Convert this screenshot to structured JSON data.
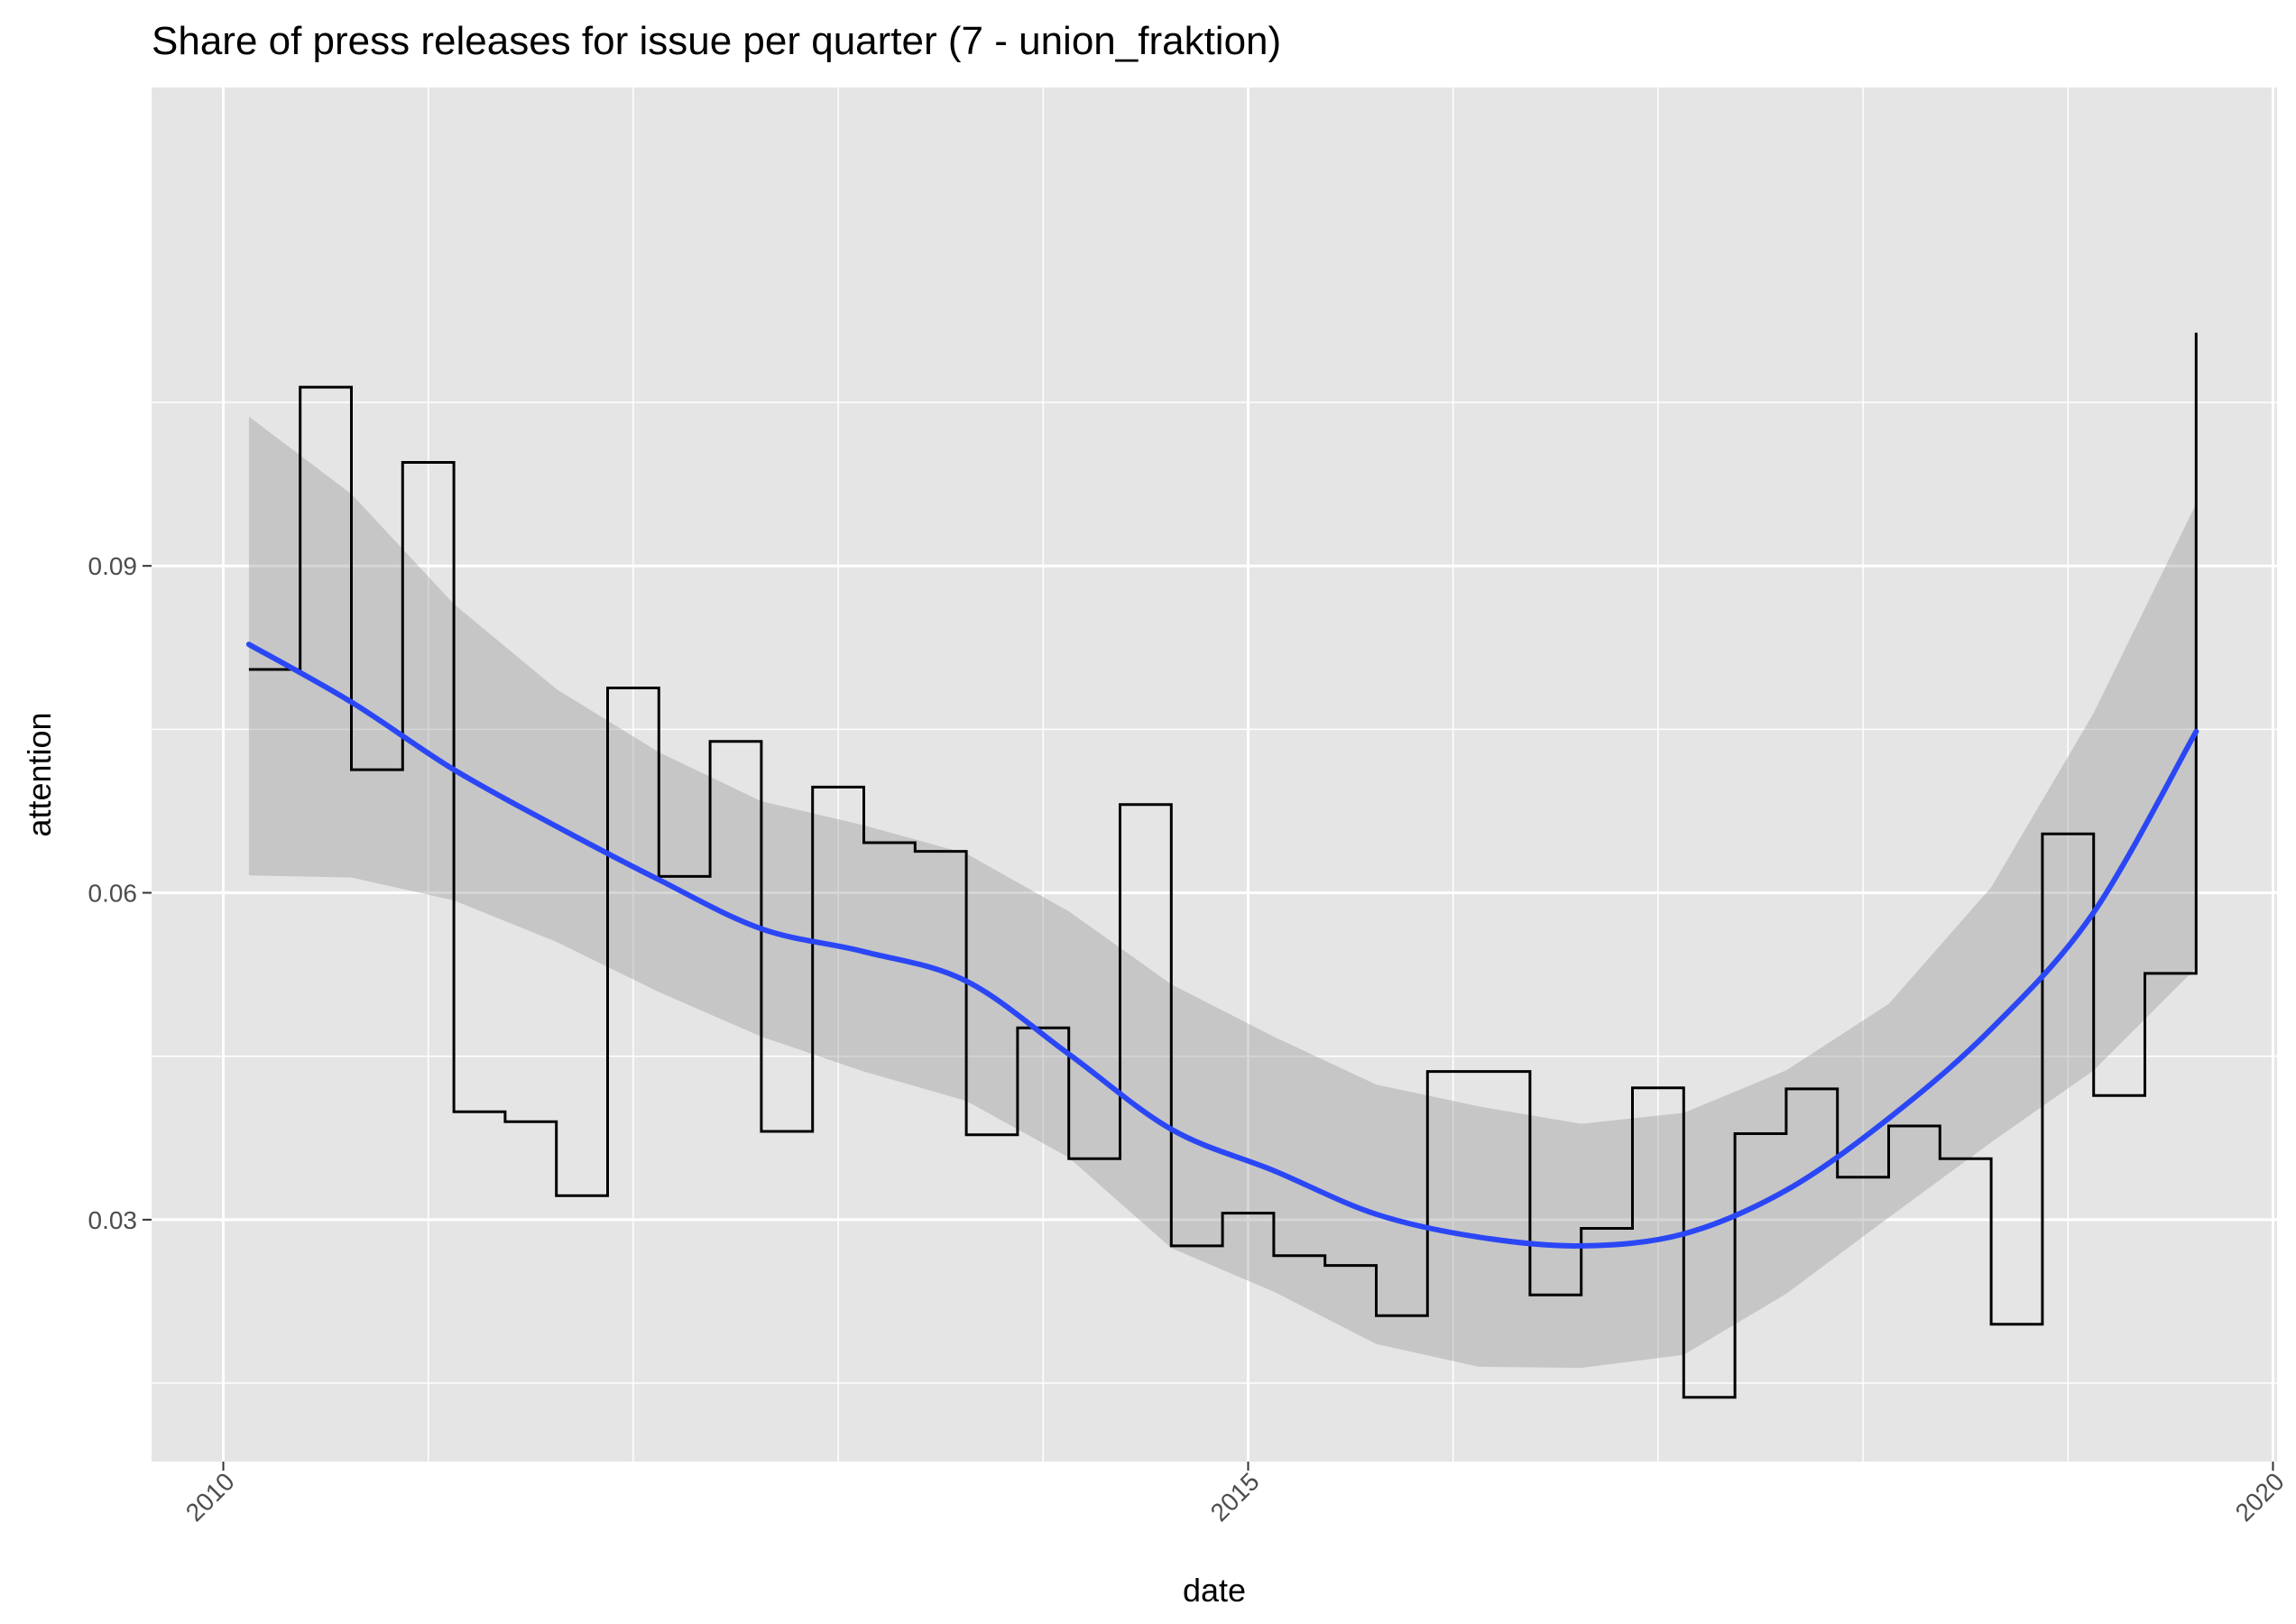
{
  "chart_data": {
    "type": "line",
    "title": "Share of press releases for issue per quarter (7 - union_fraktion)",
    "xlabel": "date",
    "ylabel": "attention",
    "xlim": [
      2009.65,
      2020.02
    ],
    "ylim": [
      0.0078,
      0.1339
    ],
    "x_ticks": [
      2010,
      2015,
      2020
    ],
    "x_tick_labels": [
      "2010",
      "2015",
      "2020"
    ],
    "y_ticks": [
      0.03,
      0.06,
      0.09
    ],
    "y_tick_labels": [
      "0.03",
      "0.06",
      "0.09"
    ],
    "grid": true,
    "legend": "none",
    "colors": {
      "panel": "#e5e5e5",
      "step": "#000000",
      "smooth": "#2b47f5",
      "ribbon": "#999999"
    },
    "series": [
      {
        "kind": "step",
        "x": [
          2010.125,
          2010.375,
          2010.625,
          2010.875,
          2011.125,
          2011.375,
          2011.625,
          2011.875,
          2012.125,
          2012.375,
          2012.625,
          2012.875,
          2013.125,
          2013.375,
          2013.625,
          2013.875,
          2014.125,
          2014.375,
          2014.625,
          2014.875,
          2015.125,
          2015.375,
          2015.625,
          2015.875,
          2016.125,
          2016.375,
          2016.625,
          2016.875,
          2017.125,
          2017.375,
          2017.625,
          2017.875,
          2018.125,
          2018.375,
          2018.625,
          2018.875,
          2019.125,
          2019.375,
          2019.625
        ],
        "y": [
          0.0805,
          0.1064,
          0.0713,
          0.0995,
          0.0399,
          0.039,
          0.0322,
          0.0788,
          0.0615,
          0.0739,
          0.0381,
          0.0697,
          0.0646,
          0.0638,
          0.0378,
          0.0476,
          0.0356,
          0.0681,
          0.0276,
          0.0306,
          0.0267,
          0.0258,
          0.0212,
          0.0436,
          0.0436,
          0.0231,
          0.0292,
          0.0421,
          0.0137,
          0.0379,
          0.042,
          0.0339,
          0.0386,
          0.0356,
          0.0204,
          0.0654,
          0.0414,
          0.0526,
          0.1114
        ]
      },
      {
        "kind": "smooth",
        "x": [
          2010.125,
          2010.625,
          2011.125,
          2011.625,
          2012.125,
          2012.625,
          2013.125,
          2013.625,
          2014.125,
          2014.625,
          2015.125,
          2015.625,
          2016.125,
          2016.625,
          2017.125,
          2017.625,
          2018.125,
          2018.625,
          2019.125,
          2019.625
        ],
        "y": [
          0.0828,
          0.0775,
          0.0713,
          0.0661,
          0.0612,
          0.0567,
          0.0546,
          0.0519,
          0.0452,
          0.0383,
          0.0345,
          0.0305,
          0.0284,
          0.0276,
          0.0287,
          0.0327,
          0.0393,
          0.0475,
          0.0582,
          0.0748
        ]
      },
      {
        "kind": "ribbon",
        "x": [
          2010.125,
          2010.625,
          2011.125,
          2011.625,
          2012.125,
          2012.625,
          2013.125,
          2013.625,
          2014.125,
          2014.625,
          2015.125,
          2015.625,
          2016.125,
          2016.625,
          2017.125,
          2017.625,
          2018.125,
          2018.625,
          2019.125,
          2019.625
        ],
        "upper": [
          0.1037,
          0.0966,
          0.0865,
          0.0787,
          0.0729,
          0.0684,
          0.0662,
          0.0636,
          0.0583,
          0.0516,
          0.0468,
          0.0424,
          0.0404,
          0.0388,
          0.0398,
          0.0437,
          0.0498,
          0.0605,
          0.0765,
          0.0957
        ],
        "lower": [
          0.0616,
          0.0614,
          0.0593,
          0.0555,
          0.0509,
          0.0468,
          0.0436,
          0.0409,
          0.0357,
          0.0274,
          0.0234,
          0.0186,
          0.0165,
          0.0164,
          0.0176,
          0.0232,
          0.0302,
          0.0371,
          0.0437,
          0.0531
        ]
      }
    ]
  }
}
